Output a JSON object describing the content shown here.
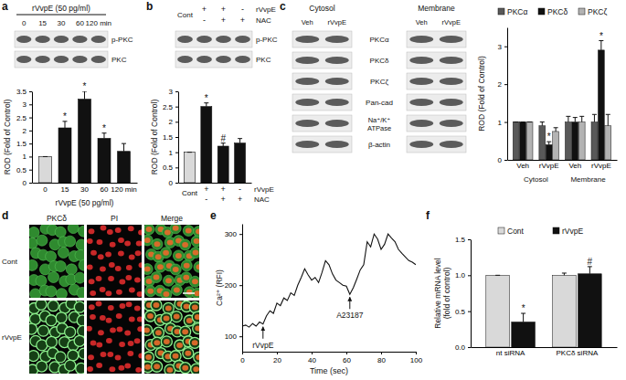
{
  "figure": {
    "panel_labels": [
      "a",
      "b",
      "c",
      "d",
      "e",
      "f"
    ],
    "blot_a": {
      "bands": [
        "p-PKC",
        "PKC"
      ]
    },
    "blot_b": {
      "bands": [
        "p-PKC",
        "PKC"
      ]
    },
    "blot_c": {
      "fractions": [
        "Cytosol",
        "Membrane"
      ],
      "lanes": [
        "Veh",
        "rVvpE"
      ],
      "bands": [
        "PKCα",
        "PKCδ",
        "PKCζ",
        "Pan-cad",
        [
          "Na⁺/K⁺",
          "ATPase"
        ],
        "β-actin"
      ]
    },
    "images_d": {
      "columns": [
        "PKCδ",
        "PI",
        "Merge"
      ],
      "rows": [
        "Cont",
        "rVvpE"
      ]
    }
  },
  "chart_data": [
    {
      "type": "bar",
      "categories": [
        "0",
        "15",
        "30",
        "60",
        "120 min"
      ],
      "values": [
        1,
        2.1,
        3.2,
        1.7,
        1.2
      ],
      "errors": [
        0,
        0.25,
        0.3,
        0.2,
        0.3
      ],
      "significance": [
        null,
        "*",
        "*",
        "*",
        null
      ],
      "colors": [
        "#d9d9d9",
        "#111111",
        "#111111",
        "#111111",
        "#111111"
      ],
      "xlabel": "rVvpE (50 pg/ml)",
      "ylabel": "ROD (Fold of Control)",
      "ylim": [
        0,
        3.5
      ],
      "yticks": [
        0,
        0.5,
        1,
        1.5,
        2,
        2.5,
        3,
        3.5
      ]
    },
    {
      "type": "bar",
      "categories": [
        "Cont",
        null,
        null,
        null
      ],
      "conditions": [
        {
          "name": "rVvpE",
          "signs": [
            null,
            "+",
            "+",
            "-"
          ]
        },
        {
          "name": "NAC",
          "signs": [
            null,
            "-",
            "+",
            "+"
          ]
        }
      ],
      "values": [
        1,
        2.5,
        1.2,
        1.3
      ],
      "errors": [
        0,
        0.12,
        0.1,
        0.15
      ],
      "significance": [
        null,
        "*",
        "#",
        null
      ],
      "colors": [
        "#d9d9d9",
        "#111111",
        "#111111",
        "#111111"
      ],
      "ylabel": "ROD (Fold of Control)",
      "ylim": [
        0,
        3
      ],
      "yticks": [
        0,
        0.5,
        1,
        1.5,
        2,
        2.5,
        3
      ]
    },
    {
      "type": "bar",
      "categories": [
        "Veh",
        "rVvpE",
        "Veh",
        "rVvpE"
      ],
      "groups": [
        "Cytosol",
        "Membrane"
      ],
      "series": [
        {
          "name": "PKCα",
          "color": "#595959",
          "values": [
            1,
            0.9,
            1.0,
            1.0
          ],
          "errors": [
            0,
            0.1,
            0.15,
            0.2
          ]
        },
        {
          "name": "PKCδ",
          "color": "#111111",
          "values": [
            1,
            0.4,
            1.0,
            2.9
          ],
          "errors": [
            0,
            0.08,
            0.12,
            0.25
          ],
          "significance": [
            null,
            "*",
            null,
            "*"
          ]
        },
        {
          "name": "PKCζ",
          "color": "#b3b3b3",
          "values": [
            1,
            0.75,
            1.0,
            0.9
          ],
          "errors": [
            0,
            0.1,
            0.15,
            0.3
          ]
        }
      ],
      "ylabel": "ROD (Fold of Control)",
      "ylim": [
        0,
        3.5
      ],
      "yticks": [
        0,
        1,
        2,
        3
      ],
      "legend": "top"
    },
    {
      "type": "line",
      "x": [
        0,
        2,
        4,
        6,
        8,
        10,
        12,
        14,
        16,
        18,
        20,
        22,
        24,
        26,
        28,
        30,
        32,
        34,
        36,
        38,
        40,
        42,
        44,
        46,
        48,
        50,
        52,
        54,
        56,
        58,
        60,
        62,
        64,
        66,
        68,
        70,
        72,
        74,
        76,
        78,
        80,
        82,
        84,
        86,
        88,
        90,
        92,
        94,
        96,
        98,
        100
      ],
      "values": [
        120,
        122,
        118,
        125,
        120,
        128,
        124,
        140,
        150,
        145,
        165,
        160,
        175,
        170,
        185,
        180,
        200,
        215,
        232,
        220,
        210,
        215,
        205,
        225,
        248,
        240,
        222,
        210,
        205,
        200,
        198,
        182,
        195,
        212,
        230,
        240,
        285,
        275,
        300,
        290,
        270,
        280,
        300,
        292,
        285,
        270,
        262,
        255,
        248,
        245,
        240
      ],
      "color": "#111111",
      "xlabel": "Time (sec)",
      "ylabel": "Ca²⁺ (RFI)",
      "xlim": [
        0,
        100
      ],
      "xticks": [
        0,
        20,
        40,
        60,
        80,
        100
      ],
      "ylim": [
        70,
        320
      ],
      "yticks": [
        100,
        200,
        300
      ],
      "annotations": [
        {
          "text": "rVvpE",
          "x": 12
        },
        {
          "text": "A23187",
          "x": 62
        }
      ]
    },
    {
      "type": "bar",
      "categories": [
        "nt siRNA",
        "PKCδ siRNA"
      ],
      "series": [
        {
          "name": "Cont",
          "color": "#d9d9d9",
          "values": [
            1,
            1
          ],
          "errors": [
            0,
            0.03
          ]
        },
        {
          "name": "rVvpE",
          "color": "#111111",
          "values": [
            0.35,
            1.02
          ],
          "errors": [
            0.12,
            0.1
          ],
          "significance": [
            "*",
            "#"
          ]
        }
      ],
      "ylabel": [
        "Relative mRNA level",
        "(fold of control)"
      ],
      "ylim": [
        0,
        1.5
      ],
      "yticks": [
        {
          "value": 0,
          "label": "0.0"
        },
        {
          "value": 0.5,
          "label": "0.5"
        },
        {
          "value": 1,
          "label": "1.0"
        },
        {
          "value": 1.5,
          "label": "1.5"
        }
      ],
      "legend": "top"
    }
  ]
}
